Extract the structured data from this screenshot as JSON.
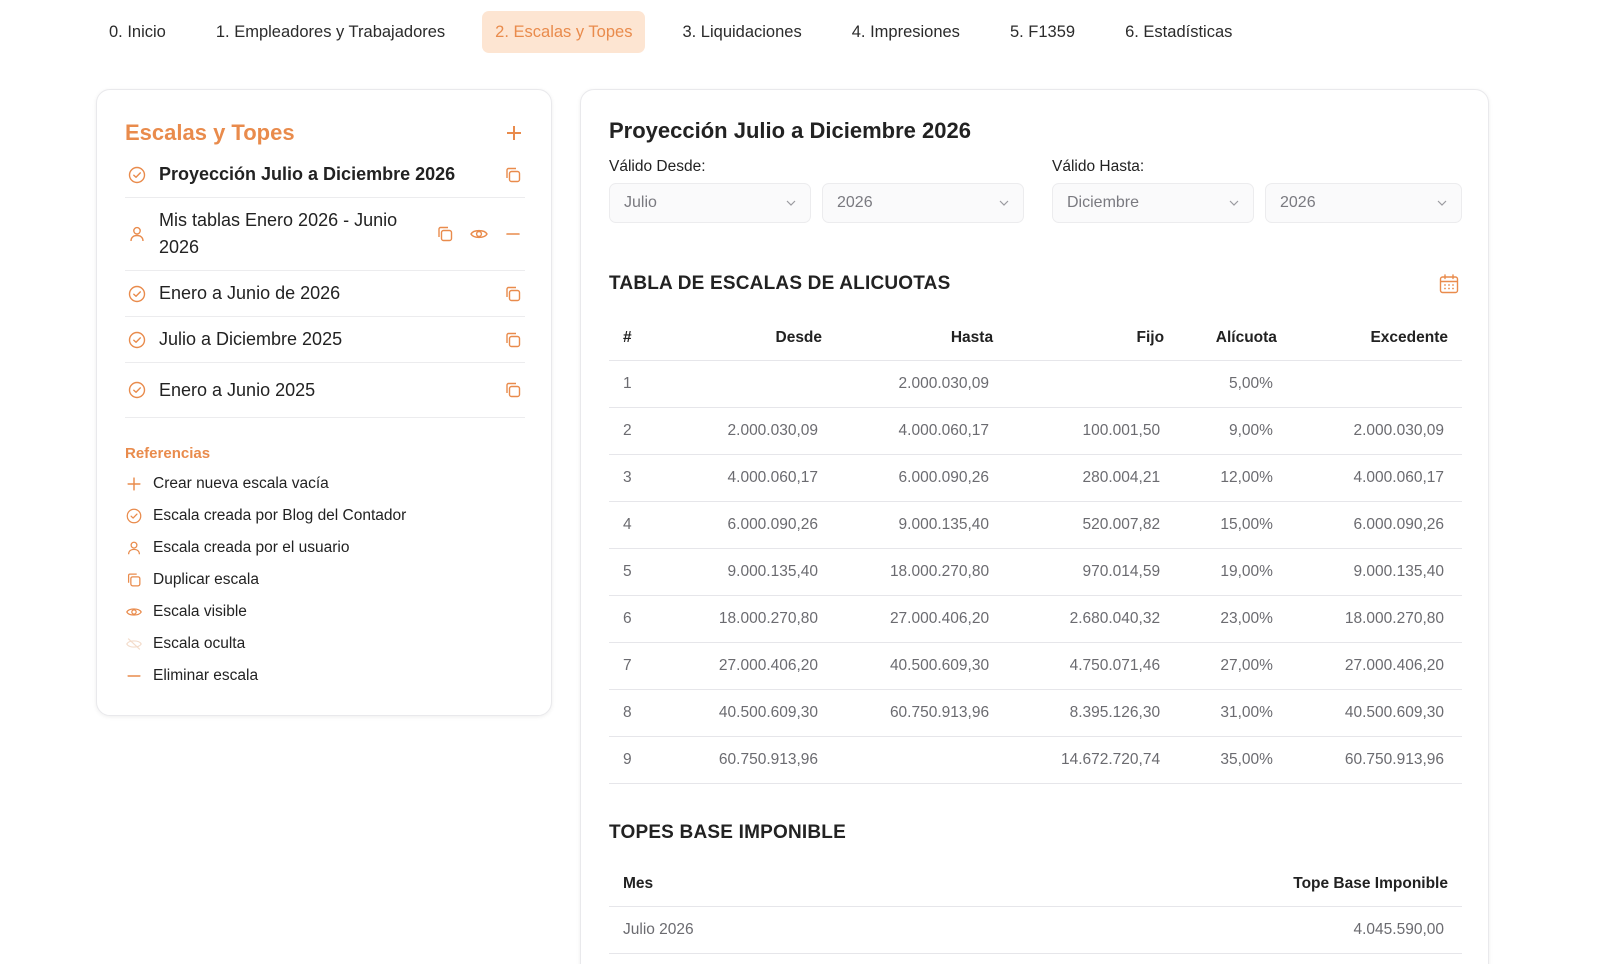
{
  "nav": {
    "tabs": [
      {
        "label": "0. Inicio"
      },
      {
        "label": "1. Empleadores y Trabajadores"
      },
      {
        "label": "2. Escalas y Topes"
      },
      {
        "label": "3. Liquidaciones"
      },
      {
        "label": "4. Impresiones"
      },
      {
        "label": "5. F1359"
      },
      {
        "label": "6. Estadísticas"
      }
    ],
    "active_index": 2
  },
  "sidebar": {
    "title": "Escalas y Topes",
    "items": [
      {
        "label": "Proyección Julio a Diciembre 2026",
        "icon": "check-circle-icon",
        "bold": true,
        "actions": [
          "copy-icon"
        ]
      },
      {
        "label": "Mis tablas Enero 2026 - Junio 2026",
        "icon": "user-icon",
        "bold": false,
        "actions": [
          "copy-icon",
          "eye-icon",
          "minus-icon"
        ]
      },
      {
        "label": "Enero a Junio de 2026",
        "icon": "check-circle-icon",
        "bold": false,
        "actions": [
          "copy-icon"
        ]
      },
      {
        "label": "Julio a Diciembre 2025",
        "icon": "check-circle-icon",
        "bold": false,
        "actions": [
          "copy-icon"
        ]
      },
      {
        "label": "Enero a Junio 2025",
        "icon": "check-circle-icon",
        "bold": false,
        "actions": [
          "copy-icon"
        ]
      }
    ],
    "references_title": "Referencias",
    "references": [
      {
        "label": "Crear nueva escala vacía",
        "icon": "plus-icon"
      },
      {
        "label": "Escala creada por Blog del Contador",
        "icon": "check-circle-icon"
      },
      {
        "label": "Escala creada por el usuario",
        "icon": "user-icon"
      },
      {
        "label": "Duplicar escala",
        "icon": "copy-icon"
      },
      {
        "label": "Escala visible",
        "icon": "eye-icon"
      },
      {
        "label": "Escala oculta",
        "icon": "eye-off-icon"
      },
      {
        "label": "Eliminar escala",
        "icon": "minus-icon"
      }
    ]
  },
  "main": {
    "title": "Proyección Julio a Diciembre 2026",
    "valid_from_label": "Válido Desde:",
    "valid_to_label": "Válido Hasta:",
    "from_month": "Julio",
    "from_year": "2026",
    "to_month": "Diciembre",
    "to_year": "2026",
    "scales_title": "TABLA DE ESCALAS DE ALICUOTAS",
    "scales_headers": [
      "#",
      "Desde",
      "Hasta",
      "Fijo",
      "Alícuota",
      "Excedente"
    ],
    "scales_rows": [
      [
        "1",
        "",
        "2.000.030,09",
        "",
        "5,00%",
        ""
      ],
      [
        "2",
        "2.000.030,09",
        "4.000.060,17",
        "100.001,50",
        "9,00%",
        "2.000.030,09"
      ],
      [
        "3",
        "4.000.060,17",
        "6.000.090,26",
        "280.004,21",
        "12,00%",
        "4.000.060,17"
      ],
      [
        "4",
        "6.000.090,26",
        "9.000.135,40",
        "520.007,82",
        "15,00%",
        "6.000.090,26"
      ],
      [
        "5",
        "9.000.135,40",
        "18.000.270,80",
        "970.014,59",
        "19,00%",
        "9.000.135,40"
      ],
      [
        "6",
        "18.000.270,80",
        "27.000.406,20",
        "2.680.040,32",
        "23,00%",
        "18.000.270,80"
      ],
      [
        "7",
        "27.000.406,20",
        "40.500.609,30",
        "4.750.071,46",
        "27,00%",
        "27.000.406,20"
      ],
      [
        "8",
        "40.500.609,30",
        "60.750.913,96",
        "8.395.126,30",
        "31,00%",
        "40.500.609,30"
      ],
      [
        "9",
        "60.750.913,96",
        "",
        "14.672.720,74",
        "35,00%",
        "60.750.913,96"
      ]
    ],
    "topes_title": "TOPES BASE IMPONIBLE",
    "topes_headers": [
      "Mes",
      "Tope Base Imponible"
    ],
    "topes_rows": [
      [
        "Julio 2026",
        "4.045.590,00"
      ]
    ]
  },
  "colors": {
    "accent": "#e98b4c",
    "active_tab_bg": "#fde5d2"
  }
}
